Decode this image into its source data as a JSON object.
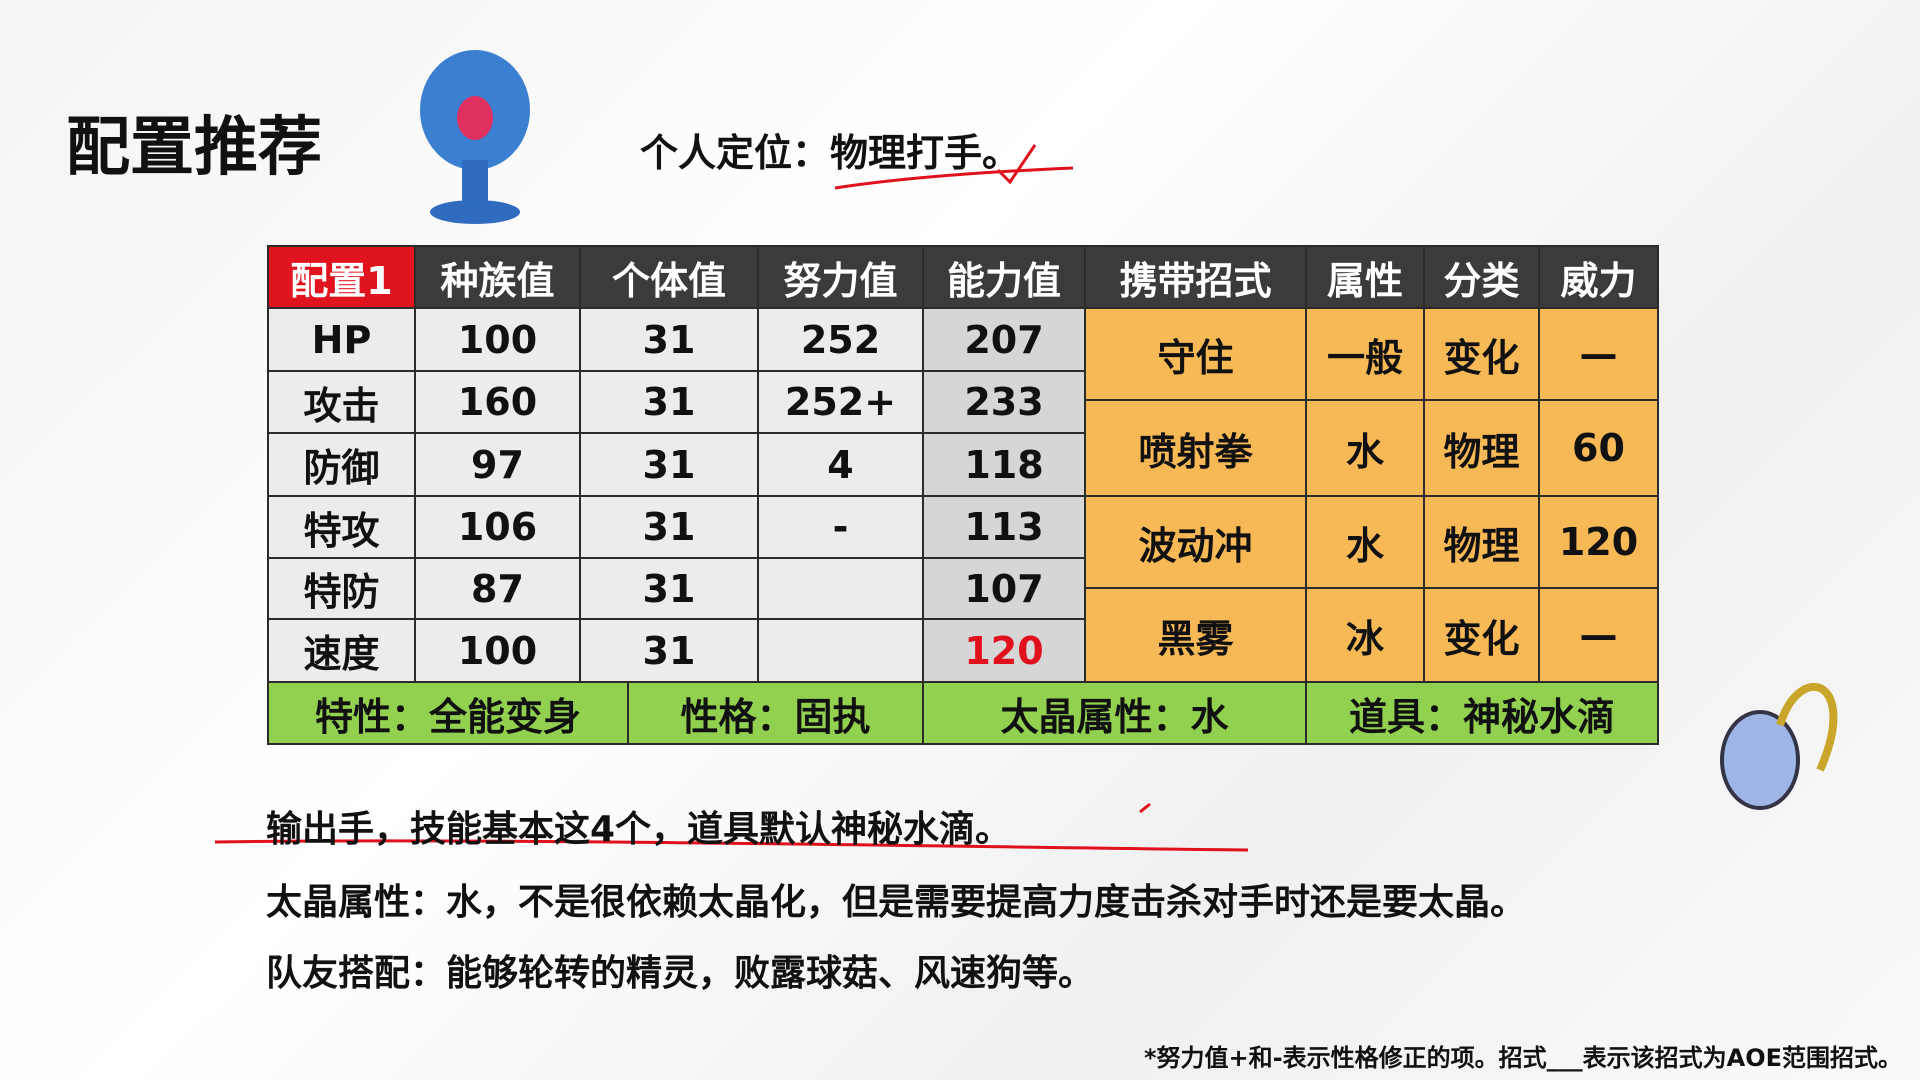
{
  "title": "配置推荐",
  "positioning": "个人定位：物理打手。",
  "table": {
    "header": [
      "配置1",
      "种族值",
      "个体值",
      "努力值",
      "能力值",
      "携带招式",
      "属性",
      "分类",
      "威力"
    ],
    "stats": [
      {
        "stat": "HP",
        "base": 100,
        "iv": 31,
        "ev": 252,
        "value": 207
      },
      {
        "stat": "攻击",
        "base": 160,
        "iv": 31,
        "ev": "252+",
        "value": 233
      },
      {
        "stat": "防御",
        "base": 97,
        "iv": 31,
        "ev": 4,
        "value": 118
      },
      {
        "stat": "特攻",
        "base": 106,
        "iv": 31,
        "ev": "-",
        "value": 113
      },
      {
        "stat": "特防",
        "base": 87,
        "iv": 31,
        "value": 107
      },
      {
        "stat": "速度",
        "base": 100,
        "iv": 31,
        "value": 120
      }
    ],
    "moves": [
      {
        "name": "守住",
        "type": "一般",
        "category": "变化",
        "power": "—"
      },
      {
        "name": "喷射拳",
        "type": "水",
        "category": "物理",
        "power": 60
      },
      {
        "name": "波动冲",
        "type": "水",
        "category": "物理",
        "power": 120
      },
      {
        "name": "黑雾",
        "type": "冰",
        "category": "变化",
        "power": "—"
      }
    ],
    "footer": [
      "特性：全能变身",
      "性格：固执",
      "太晶属性：水",
      "道具：神秘水滴"
    ]
  },
  "notes": [
    "输出手，技能基本这4个，道具默认神秘水滴。",
    "太晶属性：水，不是很依赖太晶化，但是需要提高力度击杀对手时还是要太晶。",
    "队友搭配：能够轮转的精灵，败露球菇、风速狗等。"
  ],
  "footnote": "*努力值+和-表示性格修正的项。招式___表示该招式为AOE范围招式。"
}
